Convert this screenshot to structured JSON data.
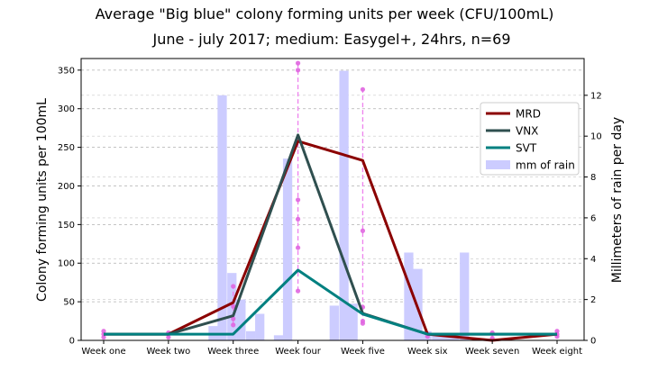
{
  "chart_data": {
    "type": "line",
    "title": "Average \"Big blue\" colony forming units per week (CFU/100mL)",
    "subtitle": "June - july 2017; medium: Easygel+, 24hrs, n=69",
    "ylabel": "Colony forming units per 100mL",
    "y2label": "Millimeters of rain per day",
    "categories": [
      "Week one",
      "Week two",
      "Week three",
      "Week four",
      "Week five",
      "Week six",
      "Week seven",
      "Week eight"
    ],
    "ylim": [
      0,
      365
    ],
    "y2lim": [
      0,
      13.8
    ],
    "yticks": [
      0,
      50,
      100,
      150,
      200,
      250,
      300,
      350
    ],
    "y2ticks": [
      0,
      2,
      4,
      6,
      8,
      10,
      12
    ],
    "grid": true,
    "legend_position": "right",
    "series": [
      {
        "name": "MRD",
        "color": "#8b0000",
        "values": [
          8,
          8,
          49,
          258,
          233,
          8,
          0,
          8
        ]
      },
      {
        "name": "VNX",
        "color": "#2f4f4f",
        "values": [
          8,
          8,
          32,
          266,
          35,
          8,
          8,
          8
        ]
      },
      {
        "name": "SVT",
        "color": "#008080",
        "values": [
          8,
          8,
          8,
          91,
          34,
          8,
          8,
          8
        ]
      }
    ],
    "rain": {
      "name": "mm of rain",
      "color": "#ccccff",
      "day_positions": [
        1.69,
        1.83,
        1.98,
        2.12,
        2.27,
        2.41,
        2.7,
        2.84,
        3.56,
        3.71,
        3.85,
        4.71,
        4.85,
        4.99,
        5.14,
        5.28,
        5.42,
        5.57
      ],
      "values": [
        0.7,
        12.0,
        3.3,
        2.0,
        0.45,
        1.3,
        0.25,
        8.9,
        1.7,
        13.2,
        1.8,
        4.3,
        3.5,
        0.45,
        0.35,
        0.3,
        0.25,
        4.3
      ]
    },
    "error_bars": [
      {
        "x": 0,
        "low": 4,
        "high": 12,
        "points": [
          4,
          8,
          12
        ]
      },
      {
        "x": 1,
        "low": 4,
        "high": 10,
        "points": [
          4,
          8,
          10
        ]
      },
      {
        "x": 2,
        "low": 20,
        "high": 70,
        "points": [
          20,
          28,
          44,
          70
        ]
      },
      {
        "x": 3,
        "low": 64,
        "high": 359,
        "points": [
          64,
          120,
          157,
          182,
          350,
          359
        ]
      },
      {
        "x": 4,
        "low": 22,
        "high": 325,
        "points": [
          22,
          25,
          43,
          142,
          325
        ]
      },
      {
        "x": 5,
        "low": 5,
        "high": 8,
        "points": [
          5,
          8
        ]
      },
      {
        "x": 6,
        "low": 3,
        "high": 10,
        "points": [
          3,
          10
        ]
      },
      {
        "x": 7,
        "low": 5,
        "high": 12,
        "points": [
          5,
          8,
          12
        ]
      }
    ],
    "error_color": "#ee82ee",
    "error_point_color": "#e066e0"
  }
}
